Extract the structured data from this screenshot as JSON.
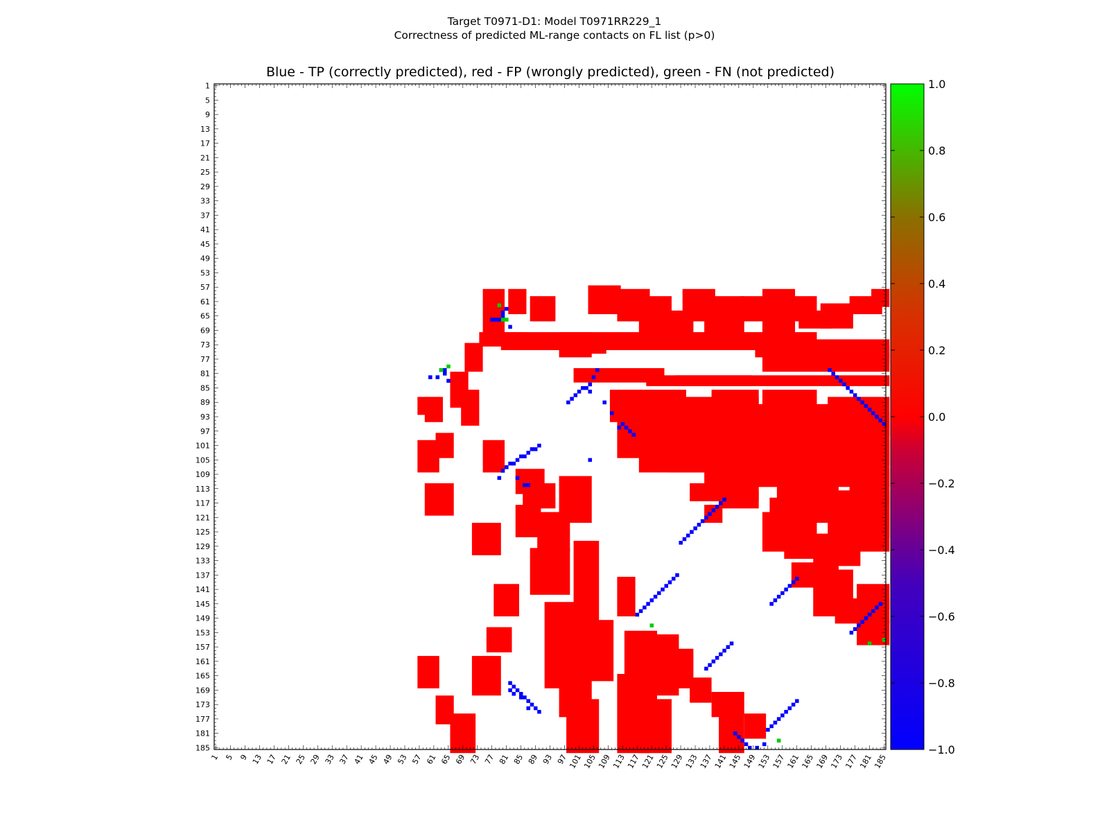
{
  "title_line1": "Target T0971-D1: Model T0971RR229_1",
  "title_line2": "Correctness of predicted ML-range contacts on FL list (p>0)",
  "chart_data": {
    "type": "heatmap",
    "title": "Blue - TP (correctly predicted), red - FP (wrongly predicted), green - FN (not predicted)",
    "n_residues": 185,
    "axis_ticks": [
      1,
      5,
      9,
      13,
      17,
      21,
      25,
      29,
      33,
      37,
      41,
      45,
      49,
      53,
      57,
      61,
      65,
      69,
      73,
      77,
      81,
      85,
      89,
      93,
      97,
      101,
      105,
      109,
      113,
      117,
      121,
      125,
      129,
      133,
      137,
      141,
      145,
      149,
      153,
      157,
      161,
      165,
      169,
      173,
      177,
      181,
      185
    ],
    "colorbar": {
      "ticks": [
        "1.0",
        "0.8",
        "0.6",
        "0.4",
        "0.2",
        "0.0",
        "−0.2",
        "−0.4",
        "−0.6",
        "−0.8",
        "−1.0"
      ],
      "min": -1.0,
      "max": 1.0
    },
    "colors": {
      "TP": "#0000ff",
      "FP": "#ff0000",
      "FN": "#00cc00"
    },
    "fp_rects": [
      [
        57,
        88,
        62,
        92
      ],
      [
        59,
        88,
        63,
        94
      ],
      [
        62,
        98,
        66,
        104
      ],
      [
        66,
        81,
        70,
        90
      ],
      [
        69,
        86,
        73,
        95
      ],
      [
        70,
        73,
        74,
        80
      ],
      [
        57,
        100,
        62,
        108
      ],
      [
        59,
        112,
        66,
        120
      ],
      [
        72,
        123,
        79,
        131
      ],
      [
        75,
        100,
        80,
        108
      ],
      [
        78,
        140,
        84,
        148
      ],
      [
        57,
        160,
        62,
        168
      ],
      [
        62,
        171,
        66,
        178
      ],
      [
        66,
        176,
        72,
        186
      ],
      [
        72,
        160,
        79,
        170
      ],
      [
        76,
        152,
        82,
        158
      ],
      [
        84,
        108,
        91,
        114
      ],
      [
        86,
        112,
        94,
        118
      ],
      [
        84,
        118,
        90,
        126
      ],
      [
        88,
        130,
        98,
        142
      ],
      [
        90,
        120,
        98,
        130
      ],
      [
        92,
        145,
        102,
        168
      ],
      [
        96,
        156,
        104,
        176
      ],
      [
        98,
        172,
        106,
        186
      ],
      [
        100,
        128,
        106,
        150
      ],
      [
        102,
        150,
        110,
        166
      ],
      [
        96,
        110,
        104,
        122
      ],
      [
        112,
        138,
        116,
        148
      ],
      [
        114,
        153,
        122,
        176
      ],
      [
        112,
        165,
        120,
        186
      ],
      [
        118,
        172,
        126,
        186
      ],
      [
        122,
        154,
        128,
        170
      ],
      [
        126,
        158,
        132,
        168
      ],
      [
        132,
        166,
        137,
        172
      ],
      [
        138,
        170,
        146,
        176
      ],
      [
        140,
        176,
        146,
        186
      ],
      [
        147,
        176,
        152,
        182
      ],
      [
        75,
        58,
        80,
        70
      ],
      [
        82,
        58,
        86,
        64
      ],
      [
        88,
        60,
        94,
        66
      ],
      [
        96,
        70,
        104,
        76
      ],
      [
        100,
        72,
        108,
        75
      ],
      [
        104,
        57,
        112,
        64
      ],
      [
        112,
        58,
        120,
        66
      ],
      [
        118,
        60,
        126,
        70
      ],
      [
        124,
        64,
        132,
        70
      ],
      [
        130,
        58,
        138,
        66
      ],
      [
        136,
        60,
        146,
        70
      ],
      [
        146,
        60,
        152,
        66
      ],
      [
        152,
        58,
        160,
        70
      ],
      [
        158,
        60,
        166,
        66
      ],
      [
        162,
        64,
        170,
        68
      ],
      [
        168,
        62,
        176,
        68
      ],
      [
        176,
        60,
        184,
        64
      ],
      [
        182,
        58,
        186,
        62
      ],
      [
        74,
        70,
        86,
        73
      ],
      [
        80,
        70,
        104,
        74
      ],
      [
        104,
        70,
        126,
        74
      ],
      [
        124,
        70,
        146,
        74
      ],
      [
        146,
        70,
        166,
        74
      ],
      [
        150,
        72,
        186,
        76
      ],
      [
        152,
        76,
        186,
        80
      ],
      [
        160,
        74,
        174,
        78
      ],
      [
        174,
        74,
        186,
        78
      ],
      [
        100,
        80,
        124,
        83
      ],
      [
        120,
        82,
        186,
        84
      ],
      [
        128,
        82,
        148,
        84
      ],
      [
        110,
        86,
        130,
        94
      ],
      [
        112,
        92,
        134,
        104
      ],
      [
        118,
        96,
        140,
        108
      ],
      [
        126,
        98,
        160,
        108
      ],
      [
        130,
        88,
        150,
        104
      ],
      [
        138,
        86,
        150,
        96
      ],
      [
        140,
        98,
        170,
        112
      ],
      [
        148,
        90,
        170,
        108
      ],
      [
        152,
        86,
        166,
        96
      ],
      [
        160,
        92,
        186,
        106
      ],
      [
        158,
        100,
        186,
        112
      ],
      [
        136,
        108,
        160,
        112
      ],
      [
        146,
        108,
        186,
        112
      ],
      [
        170,
        88,
        186,
        98
      ],
      [
        156,
        112,
        172,
        118
      ],
      [
        154,
        116,
        166,
        122
      ],
      [
        152,
        120,
        162,
        130
      ],
      [
        158,
        122,
        166,
        132
      ],
      [
        166,
        114,
        180,
        122
      ],
      [
        170,
        114,
        186,
        130
      ],
      [
        176,
        112,
        186,
        126
      ],
      [
        166,
        126,
        178,
        134
      ],
      [
        160,
        134,
        172,
        140
      ],
      [
        166,
        136,
        176,
        148
      ],
      [
        172,
        144,
        186,
        150
      ],
      [
        178,
        140,
        186,
        146
      ],
      [
        178,
        150,
        186,
        156
      ],
      [
        132,
        112,
        150,
        116
      ],
      [
        136,
        118,
        140,
        122
      ],
      [
        140,
        114,
        150,
        118
      ]
    ],
    "tp_points": [
      [
        63,
        80
      ],
      [
        64,
        81
      ],
      [
        64,
        80
      ],
      [
        62,
        82
      ],
      [
        60,
        82
      ],
      [
        65,
        83
      ],
      [
        78,
        66
      ],
      [
        79,
        66
      ],
      [
        80,
        65
      ],
      [
        80,
        64
      ],
      [
        81,
        63
      ],
      [
        77,
        66
      ],
      [
        82,
        68
      ],
      [
        90,
        101
      ],
      [
        89,
        102
      ],
      [
        88,
        102
      ],
      [
        87,
        103
      ],
      [
        86,
        104
      ],
      [
        85,
        104
      ],
      [
        84,
        105
      ],
      [
        83,
        106
      ],
      [
        82,
        106
      ],
      [
        81,
        107
      ],
      [
        80,
        108
      ],
      [
        79,
        110
      ],
      [
        84,
        110
      ],
      [
        87,
        112
      ],
      [
        86,
        112
      ],
      [
        98,
        89
      ],
      [
        99,
        88
      ],
      [
        100,
        87
      ],
      [
        101,
        86
      ],
      [
        102,
        85
      ],
      [
        103,
        85
      ],
      [
        104,
        84
      ],
      [
        105,
        82
      ],
      [
        106,
        80
      ],
      [
        104,
        86
      ],
      [
        108,
        89
      ],
      [
        110,
        92
      ],
      [
        112,
        96
      ],
      [
        113,
        95
      ],
      [
        114,
        96
      ],
      [
        115,
        97
      ],
      [
        116,
        98
      ],
      [
        104,
        105
      ],
      [
        170,
        80
      ],
      [
        171,
        81
      ],
      [
        172,
        82
      ],
      [
        173,
        83
      ],
      [
        174,
        84
      ],
      [
        175,
        85
      ],
      [
        176,
        86
      ],
      [
        177,
        87
      ],
      [
        178,
        88
      ],
      [
        179,
        89
      ],
      [
        180,
        90
      ],
      [
        181,
        91
      ],
      [
        182,
        92
      ],
      [
        183,
        93
      ],
      [
        184,
        94
      ],
      [
        185,
        95
      ],
      [
        141,
        116
      ],
      [
        140,
        117
      ],
      [
        139,
        118
      ],
      [
        138,
        119
      ],
      [
        137,
        120
      ],
      [
        136,
        121
      ],
      [
        135,
        122
      ],
      [
        134,
        123
      ],
      [
        133,
        124
      ],
      [
        132,
        125
      ],
      [
        131,
        126
      ],
      [
        130,
        127
      ],
      [
        129,
        128
      ],
      [
        161,
        138
      ],
      [
        160,
        139
      ],
      [
        159,
        140
      ],
      [
        158,
        141
      ],
      [
        157,
        142
      ],
      [
        156,
        143
      ],
      [
        155,
        144
      ],
      [
        154,
        145
      ],
      [
        128,
        137
      ],
      [
        127,
        138
      ],
      [
        126,
        139
      ],
      [
        125,
        140
      ],
      [
        124,
        141
      ],
      [
        123,
        142
      ],
      [
        122,
        143
      ],
      [
        121,
        144
      ],
      [
        120,
        145
      ],
      [
        119,
        146
      ],
      [
        118,
        147
      ],
      [
        117,
        148
      ],
      [
        143,
        156
      ],
      [
        142,
        157
      ],
      [
        141,
        158
      ],
      [
        140,
        159
      ],
      [
        139,
        160
      ],
      [
        138,
        161
      ],
      [
        137,
        162
      ],
      [
        136,
        163
      ],
      [
        161,
        172
      ],
      [
        160,
        173
      ],
      [
        159,
        174
      ],
      [
        158,
        175
      ],
      [
        157,
        176
      ],
      [
        156,
        177
      ],
      [
        155,
        178
      ],
      [
        154,
        179
      ],
      [
        153,
        180
      ],
      [
        176,
        153
      ],
      [
        177,
        152
      ],
      [
        178,
        151
      ],
      [
        179,
        150
      ],
      [
        180,
        149
      ],
      [
        181,
        148
      ],
      [
        182,
        147
      ],
      [
        183,
        146
      ],
      [
        184,
        145
      ],
      [
        82,
        167
      ],
      [
        83,
        168
      ],
      [
        84,
        169
      ],
      [
        85,
        170
      ],
      [
        86,
        171
      ],
      [
        87,
        172
      ],
      [
        88,
        173
      ],
      [
        89,
        174
      ],
      [
        90,
        175
      ],
      [
        82,
        169
      ],
      [
        83,
        170
      ],
      [
        85,
        171
      ],
      [
        87,
        174
      ],
      [
        144,
        181
      ],
      [
        145,
        182
      ],
      [
        146,
        183
      ],
      [
        147,
        184
      ],
      [
        148,
        185
      ],
      [
        150,
        185
      ],
      [
        152,
        184
      ]
    ],
    "fn_points": [
      [
        79,
        62
      ],
      [
        80,
        66
      ],
      [
        81,
        66
      ],
      [
        65,
        79
      ],
      [
        63,
        80
      ],
      [
        121,
        151
      ],
      [
        156,
        183
      ],
      [
        181,
        156
      ],
      [
        185,
        155
      ]
    ]
  }
}
